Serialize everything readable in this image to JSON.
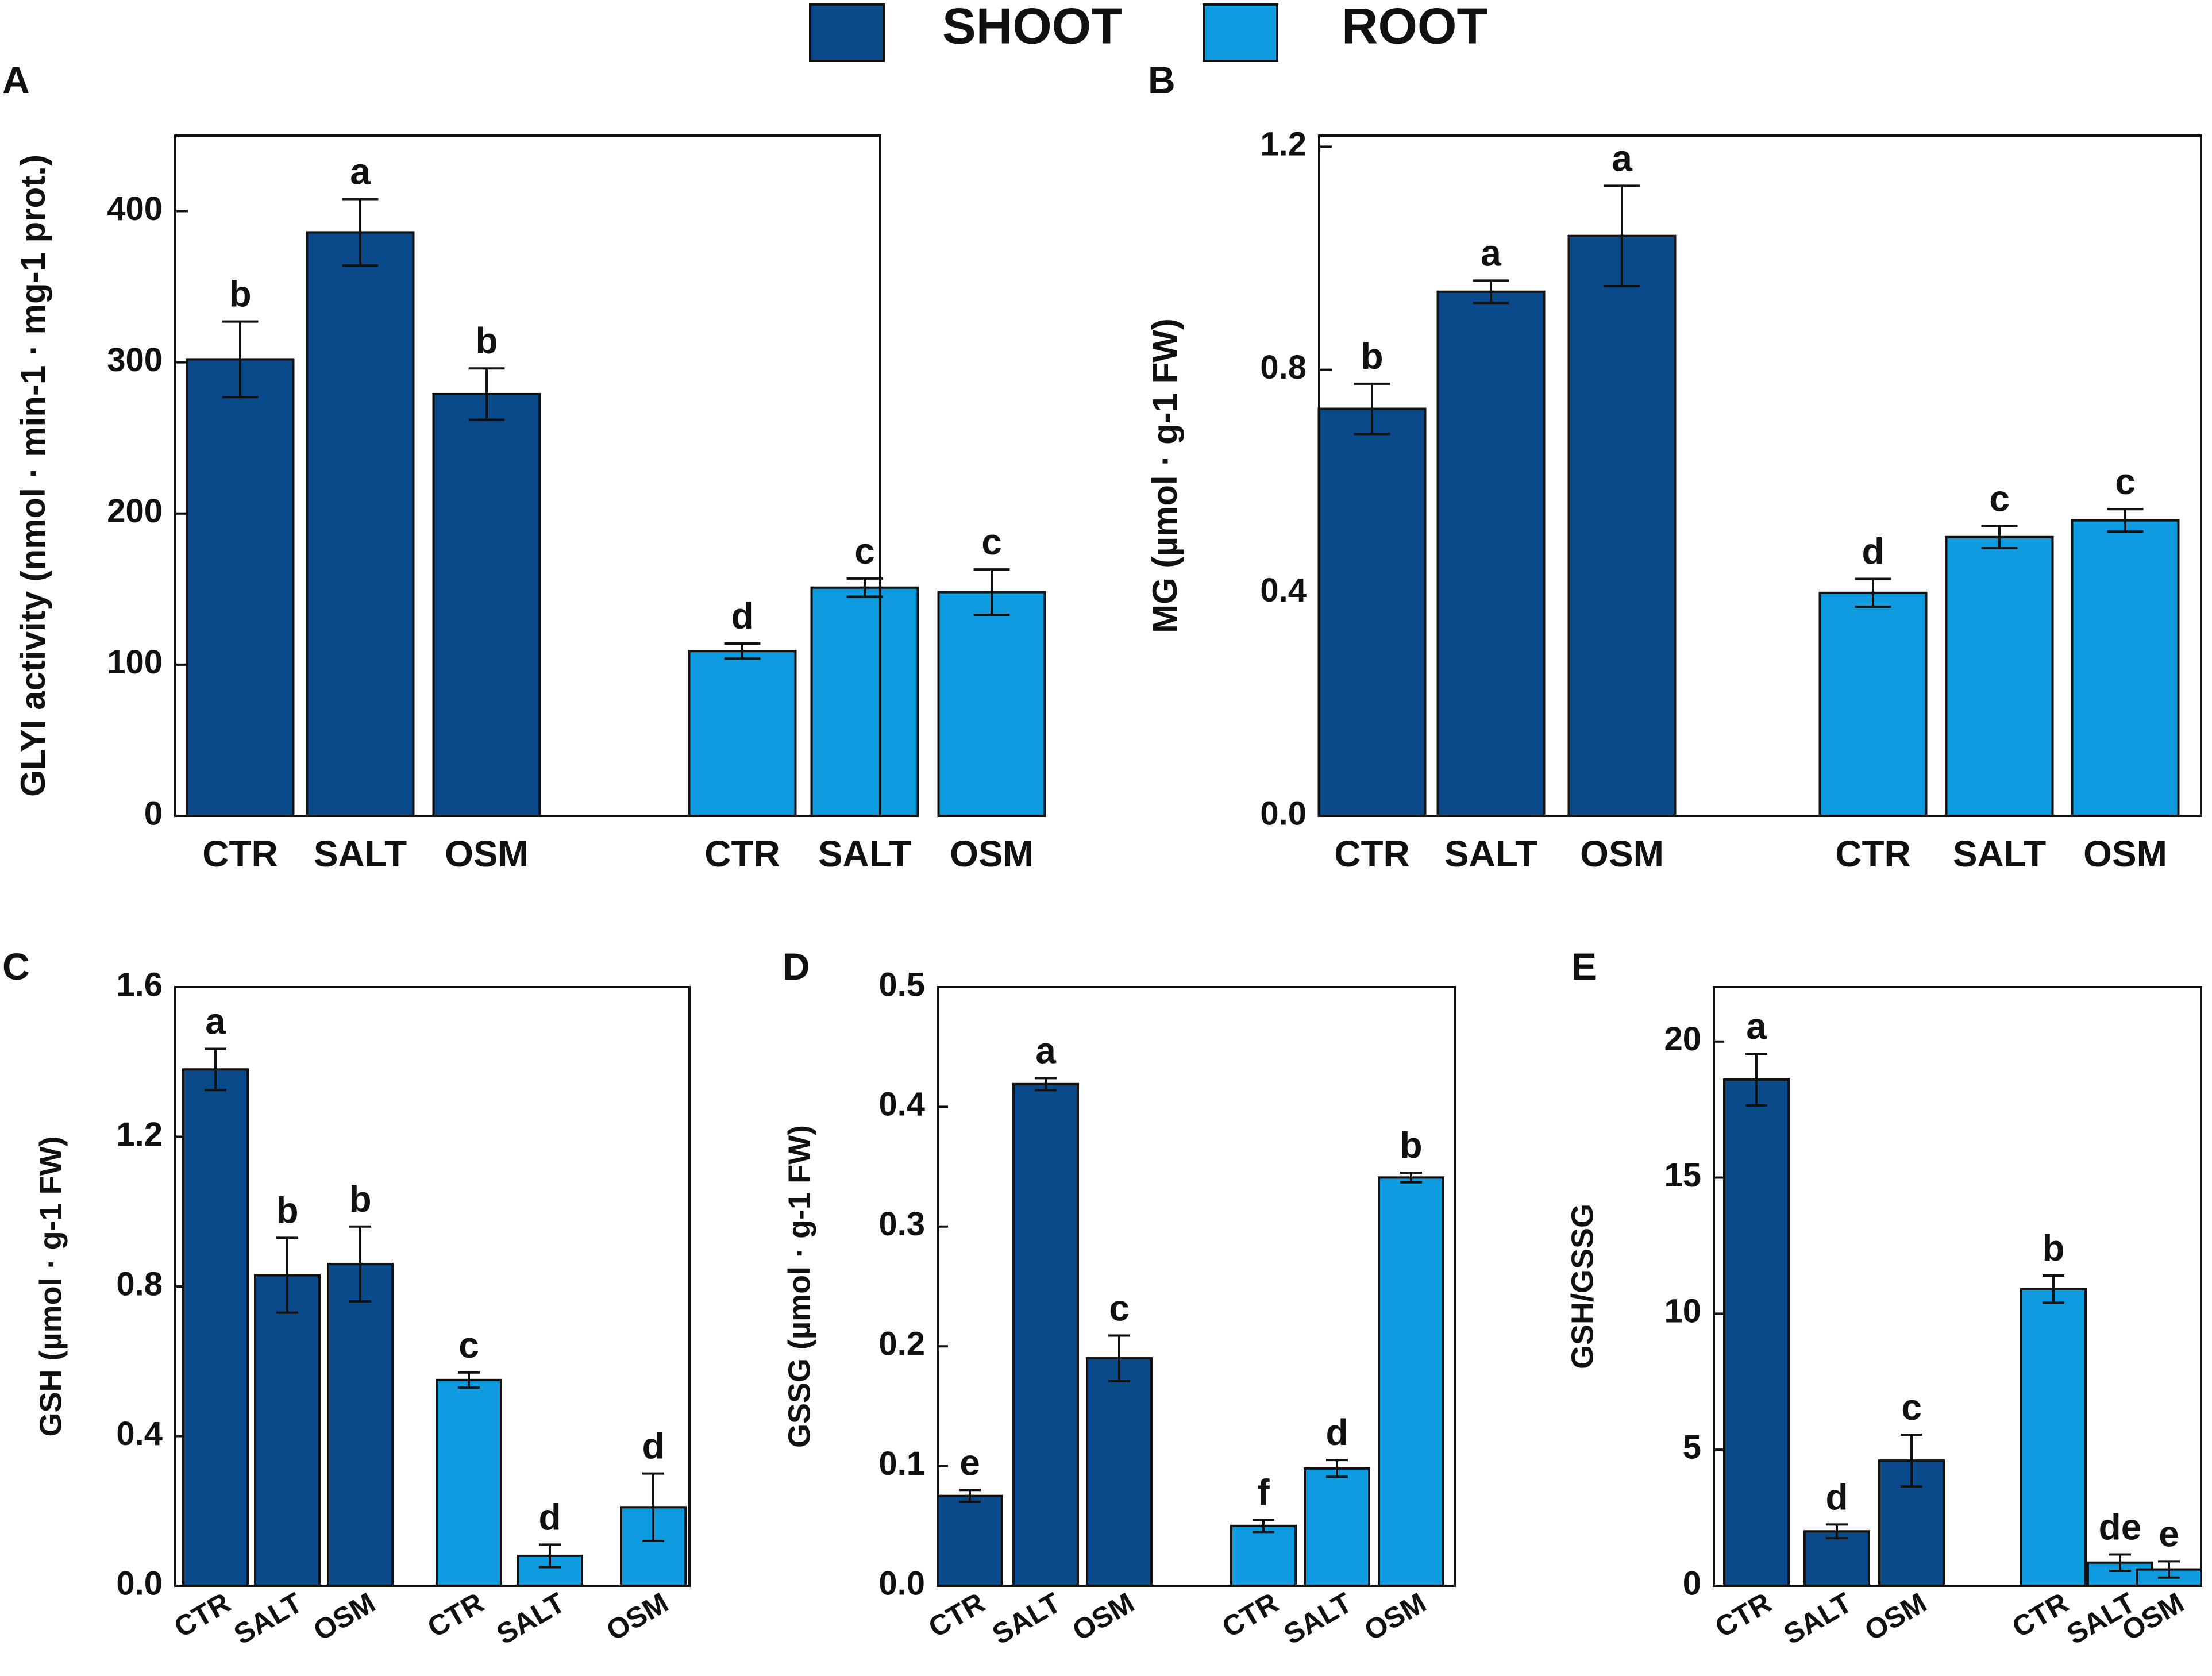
{
  "legend": {
    "items": [
      {
        "name": "SHOOT",
        "color": "#0a4a8a"
      },
      {
        "name": "ROOT",
        "color": "#0f9be0"
      }
    ]
  },
  "chart_data": [
    {
      "panel": "A",
      "type": "bar",
      "ylabel": "GLYI activity (nmol · min-1 · mg-1 prot.)",
      "ylim": [
        0,
        450
      ],
      "yticks": [
        0,
        100,
        200,
        300,
        400
      ],
      "categories": [
        "CTR",
        "SALT",
        "OSM"
      ],
      "series": [
        {
          "name": "SHOOT",
          "values": [
            302,
            386,
            279
          ],
          "errors": [
            25,
            22,
            17
          ],
          "letters": [
            "b",
            "a",
            "b"
          ]
        },
        {
          "name": "ROOT",
          "values": [
            109,
            151,
            148
          ],
          "errors": [
            5,
            6,
            15
          ],
          "letters": [
            "d",
            "c",
            "c"
          ]
        }
      ]
    },
    {
      "panel": "B",
      "type": "bar",
      "ylabel": "MG (µmol · g-1 FW)",
      "ylim": [
        0,
        1.22
      ],
      "yticks": [
        0.0,
        0.4,
        0.8,
        1.2
      ],
      "categories": [
        "CTR",
        "SALT",
        "OSM"
      ],
      "series": [
        {
          "name": "SHOOT",
          "values": [
            0.73,
            0.94,
            1.04
          ],
          "errors": [
            0.045,
            0.02,
            0.09
          ],
          "letters": [
            "b",
            "a",
            "a"
          ]
        },
        {
          "name": "ROOT",
          "values": [
            0.4,
            0.5,
            0.53
          ],
          "errors": [
            0.025,
            0.02,
            0.02
          ],
          "letters": [
            "d",
            "c",
            "c"
          ]
        }
      ]
    },
    {
      "panel": "C",
      "type": "bar",
      "ylabel": "GSH (µmol · g-1 FW)",
      "ylim": [
        0,
        1.6
      ],
      "yticks": [
        0.0,
        0.4,
        0.8,
        1.2,
        1.6
      ],
      "categories": [
        "CTR",
        "SALT",
        "OSM"
      ],
      "series": [
        {
          "name": "SHOOT",
          "values": [
            1.38,
            0.83,
            0.86
          ],
          "errors": [
            0.055,
            0.1,
            0.1
          ],
          "letters": [
            "a",
            "b",
            "b"
          ]
        },
        {
          "name": "ROOT",
          "values": [
            0.55,
            0.08,
            0.21
          ],
          "errors": [
            0.02,
            0.03,
            0.09
          ],
          "letters": [
            "c",
            "d",
            "d"
          ]
        }
      ]
    },
    {
      "panel": "D",
      "type": "bar",
      "ylabel": "GSSG (µmol · g-1 FW)",
      "ylim": [
        0,
        0.5
      ],
      "yticks": [
        0.0,
        0.1,
        0.2,
        0.3,
        0.4,
        0.5
      ],
      "categories": [
        "CTR",
        "SALT",
        "OSM"
      ],
      "series": [
        {
          "name": "SHOOT",
          "values": [
            0.075,
            0.419,
            0.19
          ],
          "errors": [
            0.005,
            0.005,
            0.019
          ],
          "letters": [
            "e",
            "a",
            "c"
          ]
        },
        {
          "name": "ROOT",
          "values": [
            0.05,
            0.098,
            0.341
          ],
          "errors": [
            0.005,
            0.007,
            0.004
          ],
          "letters": [
            "f",
            "d",
            "b"
          ]
        }
      ]
    },
    {
      "panel": "E",
      "type": "bar",
      "ylabel": "GSH/GSSG",
      "ylim": [
        0,
        22
      ],
      "yticks": [
        0,
        5,
        10,
        15,
        20
      ],
      "categories": [
        "CTR",
        "SALT",
        "OSM"
      ],
      "series": [
        {
          "name": "SHOOT",
          "values": [
            18.6,
            2.0,
            4.6
          ],
          "errors": [
            0.95,
            0.25,
            0.95
          ],
          "letters": [
            "a",
            "d",
            "c"
          ]
        },
        {
          "name": "ROOT",
          "values": [
            10.9,
            0.85,
            0.6
          ],
          "errors": [
            0.5,
            0.3,
            0.3
          ],
          "letters": [
            "b",
            "de",
            "e"
          ]
        }
      ]
    }
  ]
}
